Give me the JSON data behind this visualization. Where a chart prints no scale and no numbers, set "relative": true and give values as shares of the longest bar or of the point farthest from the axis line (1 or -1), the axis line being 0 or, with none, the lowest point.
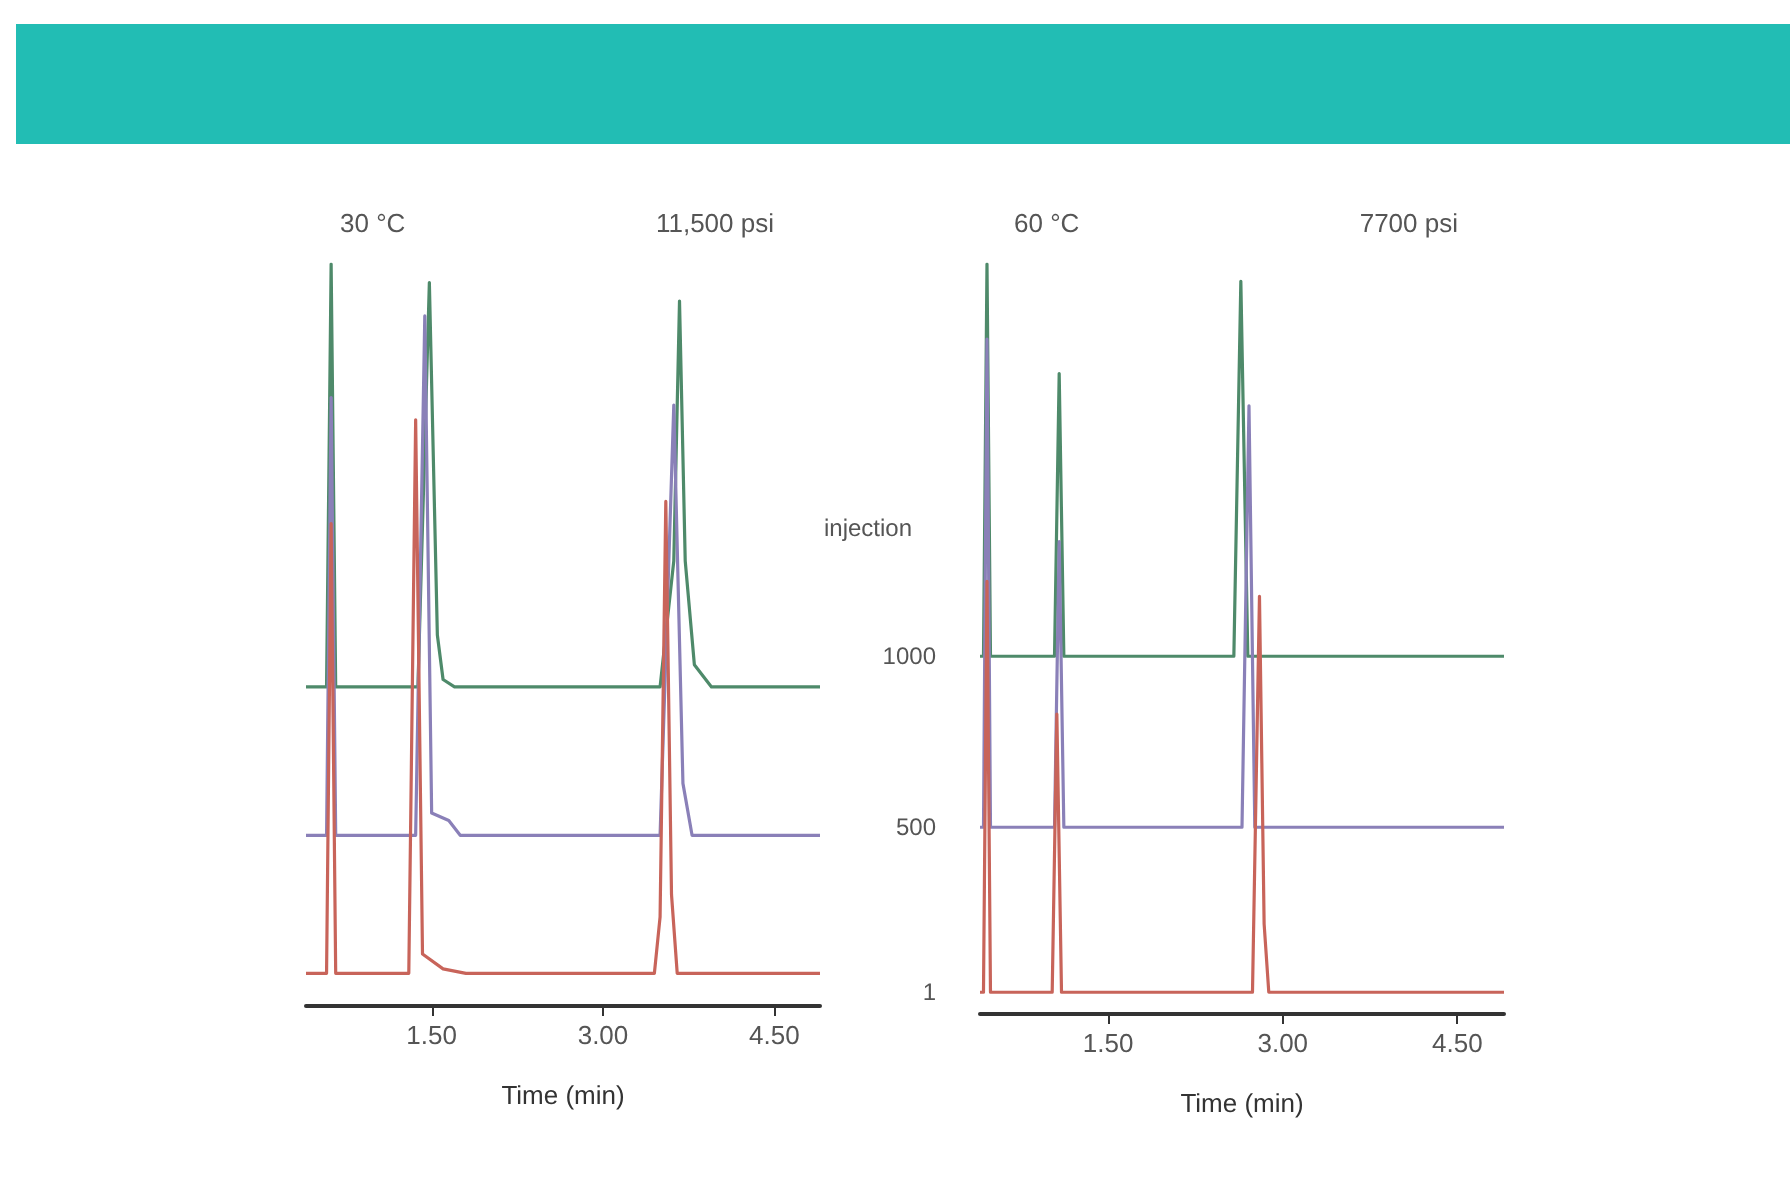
{
  "chart_data": [
    {
      "type": "line",
      "title": "30 °C",
      "subtitle": "11,500 psi",
      "xlabel": "Time (min)",
      "relative": true,
      "xlim": [
        0.4,
        4.9
      ],
      "xticks": [
        {
          "value": 1.5,
          "label": "1.50"
        },
        {
          "value": 3,
          "label": "3.00"
        },
        {
          "value": 4.5,
          "label": "4.50"
        }
      ],
      "series": [
        {
          "color": "#4e8a6a",
          "x": [
            0.4,
            0.58,
            0.62,
            0.66,
            1.38,
            1.48,
            1.55,
            1.6,
            1.7,
            3.5,
            3.62,
            3.67,
            3.72,
            3.8,
            3.95,
            4.9
          ],
          "values": [
            0.43,
            0.43,
            1.0,
            0.43,
            0.43,
            0.975,
            0.5,
            0.44,
            0.43,
            0.43,
            0.6,
            0.95,
            0.6,
            0.46,
            0.43,
            0.43
          ]
        },
        {
          "color": "#8a80b8",
          "x": [
            0.4,
            0.58,
            0.62,
            0.66,
            1.36,
            1.44,
            1.5,
            1.65,
            1.75,
            3.5,
            3.62,
            3.7,
            3.78,
            4.9
          ],
          "values": [
            0.23,
            0.23,
            0.82,
            0.23,
            0.23,
            0.93,
            0.26,
            0.25,
            0.23,
            0.23,
            0.81,
            0.3,
            0.23,
            0.23
          ]
        },
        {
          "color": "#c8645a",
          "x": [
            0.4,
            0.58,
            0.62,
            0.66,
            1.3,
            1.36,
            1.42,
            1.6,
            1.8,
            3.45,
            3.5,
            3.55,
            3.6,
            3.65,
            4.9
          ],
          "values": [
            0.044,
            0.044,
            0.65,
            0.044,
            0.044,
            0.79,
            0.07,
            0.05,
            0.044,
            0.044,
            0.12,
            0.68,
            0.15,
            0.044,
            0.044
          ]
        }
      ]
    },
    {
      "type": "line",
      "title": "60 °C",
      "subtitle": "7700 psi",
      "xlabel": "Time (min)",
      "legend_title": "injection",
      "relative": true,
      "xlim": [
        0.4,
        4.9
      ],
      "xticks": [
        {
          "value": 1.5,
          "label": "1.50"
        },
        {
          "value": 3,
          "label": "3.00"
        },
        {
          "value": 4.5,
          "label": "4.50"
        }
      ],
      "series": [
        {
          "name": "1000",
          "color": "#4e8a6a",
          "x": [
            0.4,
            0.43,
            0.46,
            0.49,
            1.04,
            1.08,
            1.12,
            2.58,
            2.64,
            2.7,
            4.9
          ],
          "values": [
            0.477,
            0.477,
            1.0,
            0.477,
            0.477,
            0.854,
            0.477,
            0.477,
            0.977,
            0.477,
            0.477
          ]
        },
        {
          "name": "500",
          "color": "#8a80b8",
          "x": [
            0.4,
            0.43,
            0.46,
            0.49,
            1.04,
            1.08,
            1.12,
            2.65,
            2.71,
            2.76,
            4.9
          ],
          "values": [
            0.249,
            0.249,
            0.9,
            0.249,
            0.249,
            0.63,
            0.249,
            0.249,
            0.811,
            0.249,
            0.249
          ]
        },
        {
          "name": "1",
          "color": "#c8645a",
          "x": [
            0.4,
            0.43,
            0.46,
            0.49,
            1.02,
            1.06,
            1.1,
            2.74,
            2.8,
            2.84,
            2.88,
            4.9
          ],
          "values": [
            0.029,
            0.029,
            0.577,
            0.029,
            0.029,
            0.4,
            0.029,
            0.029,
            0.557,
            0.12,
            0.029,
            0.029
          ]
        }
      ]
    }
  ]
}
